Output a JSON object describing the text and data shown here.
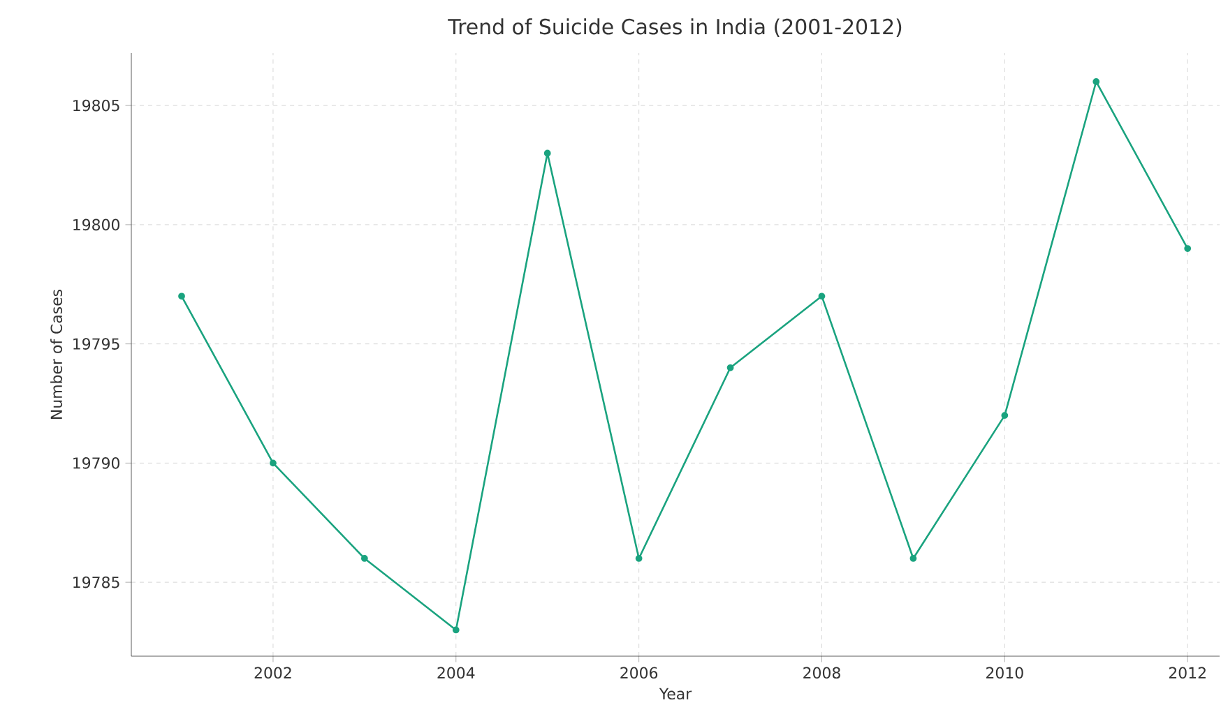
{
  "chart_data": {
    "type": "line",
    "title": "Trend of Suicide Cases in India (2001-2012)",
    "xlabel": "Year",
    "ylabel": "Number of Cases",
    "x": [
      2001,
      2002,
      2003,
      2004,
      2005,
      2006,
      2007,
      2008,
      2009,
      2010,
      2011,
      2012
    ],
    "series": [
      {
        "color": "#1aa37f",
        "values": [
          19797,
          19790,
          19786,
          19783,
          19803,
          19786,
          19794,
          19797,
          19786,
          19792,
          19806,
          19799
        ]
      }
    ],
    "xlim": [
      2000.45,
      2012.35
    ],
    "ylim": [
      19781.9,
      19807.2
    ],
    "xticks": [
      2002,
      2004,
      2006,
      2008,
      2010,
      2012
    ],
    "yticks": [
      19785,
      19790,
      19795,
      19800,
      19805
    ],
    "grid": true,
    "marker": "circle",
    "line_style": "solid"
  }
}
